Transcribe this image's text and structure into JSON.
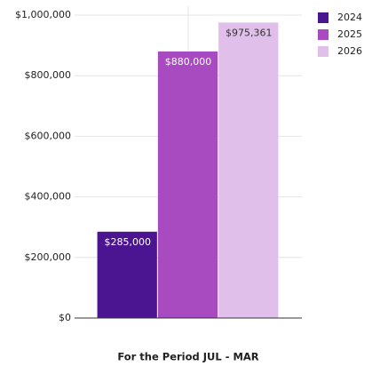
{
  "chart_data": {
    "type": "bar",
    "categories": [
      "For the Period JUL - MAR"
    ],
    "series": [
      {
        "name": "2024",
        "color": "#4b1591",
        "values": [
          285000
        ],
        "value_labels": [
          "$285,000"
        ]
      },
      {
        "name": "2025",
        "color": "#a84bc0",
        "values": [
          880000
        ],
        "value_labels": [
          "$880,000"
        ]
      },
      {
        "name": "2026",
        "color": "#e0c0ea",
        "values": [
          975361
        ],
        "value_labels": [
          "$975,361"
        ]
      }
    ],
    "ylim": [
      0,
      1000000
    ],
    "yticks": [
      {
        "value": 0,
        "label": "$0"
      },
      {
        "value": 200000,
        "label": "$200,000"
      },
      {
        "value": 400000,
        "label": "$400,000"
      },
      {
        "value": 600000,
        "label": "$600,000"
      },
      {
        "value": 800000,
        "label": "$800,000"
      },
      {
        "value": 1000000,
        "label": "$1,000,000"
      }
    ],
    "grid": true,
    "legend": "top-right"
  }
}
